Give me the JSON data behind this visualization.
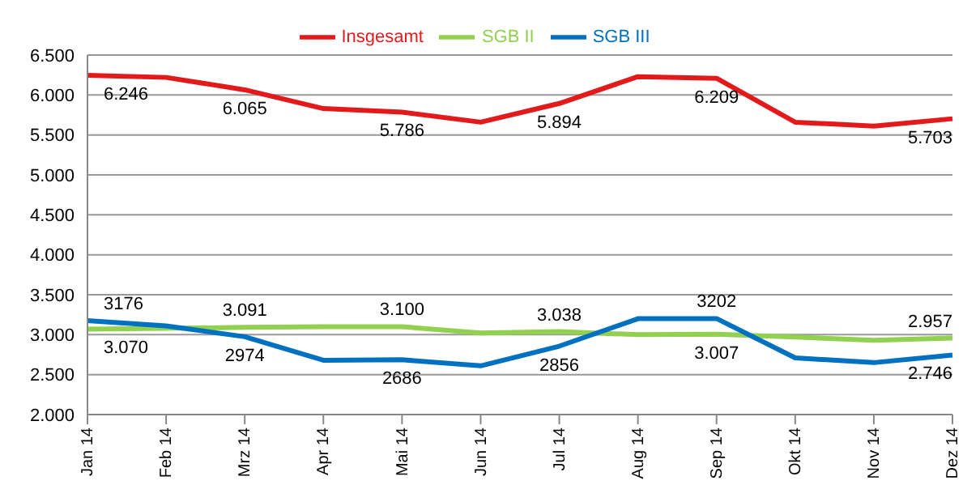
{
  "chart_data": {
    "type": "line",
    "categories": [
      "Jan 14",
      "Feb 14",
      "Mrz 14",
      "Apr 14",
      "Mai 14",
      "Jun 14",
      "Jul 14",
      "Aug 14",
      "Sep 14",
      "Okt 14",
      "Nov 14",
      "Dez 14"
    ],
    "series": [
      {
        "name": "SGB II",
        "color": "#92d050",
        "values": [
          3070,
          3080,
          3091,
          3100,
          3100,
          3020,
          3038,
          3000,
          3007,
          2970,
          2930,
          2957
        ],
        "value_labels": [
          "3.070",
          null,
          "3.091",
          null,
          "3.100",
          null,
          "3.038",
          null,
          "3.007",
          null,
          null,
          "2.957"
        ]
      },
      {
        "name": "SGB III",
        "color": "#0070c0",
        "values": [
          3176,
          3110,
          2974,
          2680,
          2686,
          2610,
          2856,
          3200,
          3202,
          2710,
          2650,
          2746
        ],
        "value_labels": [
          "3176",
          null,
          "2974",
          null,
          "2686",
          null,
          "2856",
          null,
          "3202",
          null,
          null,
          "2.746"
        ]
      },
      {
        "name": "Insgesamt",
        "color": "#e31a1c",
        "values": [
          6246,
          6220,
          6065,
          5830,
          5786,
          5660,
          5894,
          6230,
          6209,
          5660,
          5610,
          5703
        ],
        "value_labels": [
          "6.246",
          null,
          "6.065",
          null,
          "5.786",
          null,
          "5.894",
          null,
          "6.209",
          null,
          null,
          "5.703"
        ]
      }
    ],
    "ylim": [
      2000,
      6500
    ],
    "yticks": [
      {
        "value": 2000,
        "label": "2.000"
      },
      {
        "value": 2500,
        "label": "2.500"
      },
      {
        "value": 3000,
        "label": "3.000"
      },
      {
        "value": 3500,
        "label": "3.500"
      },
      {
        "value": 4000,
        "label": "4.000"
      },
      {
        "value": 4500,
        "label": "4.500"
      },
      {
        "value": 5000,
        "label": "5.000"
      },
      {
        "value": 5500,
        "label": "5.500"
      },
      {
        "value": 6000,
        "label": "6.000"
      },
      {
        "value": 6500,
        "label": "6.500"
      }
    ],
    "grid": "y",
    "legend": "top",
    "marker": "none",
    "line_style": "solid"
  }
}
